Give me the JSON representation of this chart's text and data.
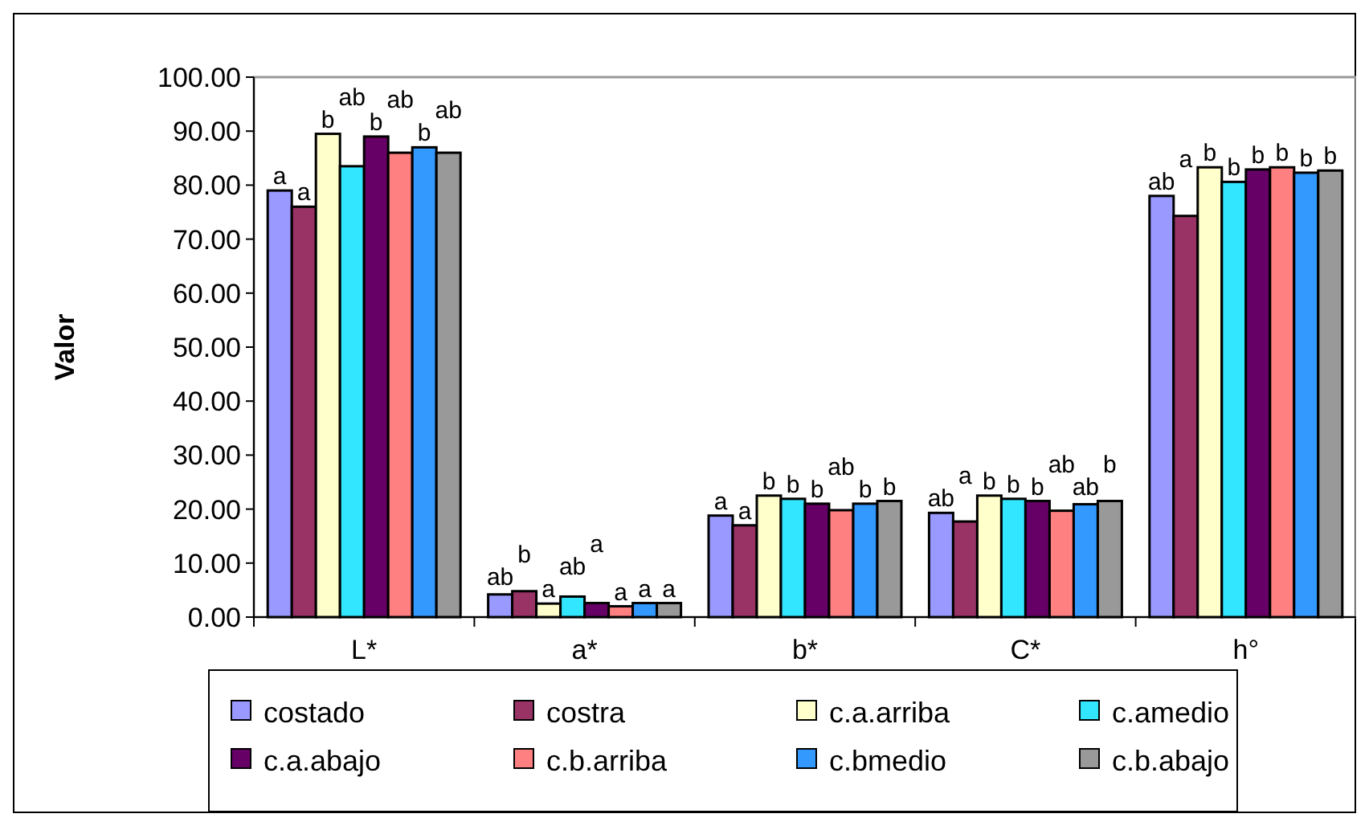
{
  "chart_data": {
    "type": "bar",
    "ylabel": "Valor",
    "categories": [
      "L*",
      "a*",
      "b*",
      "C*",
      "h°"
    ],
    "ylim": [
      0,
      100
    ],
    "yticks": [
      {
        "value": 0,
        "label": "0.00"
      },
      {
        "value": 10,
        "label": "10.00"
      },
      {
        "value": 20,
        "label": "20.00"
      },
      {
        "value": 30,
        "label": "30.00"
      },
      {
        "value": 40,
        "label": "40.00"
      },
      {
        "value": 50,
        "label": "50.00"
      },
      {
        "value": 60,
        "label": "60.00"
      },
      {
        "value": 70,
        "label": "70.00"
      },
      {
        "value": 80,
        "label": "80.00"
      },
      {
        "value": 90,
        "label": "90.00"
      },
      {
        "value": 100,
        "label": "100.00"
      }
    ],
    "grid": false,
    "legend": "bottom",
    "series": [
      {
        "name": "costado",
        "color": "#9999ff",
        "values": [
          79,
          4.2,
          18.8,
          19.3,
          78
        ],
        "value_labels": [
          "a",
          "ab",
          "a",
          "ab",
          "ab"
        ]
      },
      {
        "name": "costra",
        "color": "#993366",
        "values": [
          76,
          4.8,
          17,
          17.7,
          74.3
        ],
        "value_labels": [
          "a",
          "b",
          "a",
          "a",
          "a"
        ]
      },
      {
        "name": "c.a.arriba",
        "color": "#ffffcc",
        "values": [
          89.5,
          2.5,
          22.5,
          22.5,
          83.3
        ],
        "value_labels": [
          "b",
          "a",
          "b",
          "b",
          "b"
        ]
      },
      {
        "name": "c.amedio",
        "color": "#33e6ff",
        "values": [
          83.5,
          3.8,
          21.9,
          21.9,
          80.6
        ],
        "value_labels": [
          "ab",
          "ab",
          "b",
          "b",
          "b"
        ]
      },
      {
        "name": "c.a.abajo",
        "color": "#660066",
        "values": [
          89,
          2.6,
          21,
          21.5,
          82.9
        ],
        "value_labels": [
          "b",
          "a",
          "b",
          "b",
          "b"
        ]
      },
      {
        "name": "c.b.arriba",
        "color": "#ff8080",
        "values": [
          86,
          2,
          19.8,
          19.7,
          83.3
        ],
        "value_labels": [
          "ab",
          "a",
          "ab",
          "ab",
          "b"
        ]
      },
      {
        "name": "c.bmedio",
        "color": "#3399ff",
        "values": [
          87,
          2.6,
          21,
          20.9,
          82.3
        ],
        "value_labels": [
          "b",
          "a",
          "b",
          "ab",
          "b"
        ]
      },
      {
        "name": "c.b.abajo",
        "color": "#999999",
        "values": [
          86,
          2.6,
          21.5,
          21.5,
          82.7
        ],
        "value_labels": [
          "ab",
          "a",
          "b",
          "b",
          "b"
        ]
      }
    ]
  }
}
